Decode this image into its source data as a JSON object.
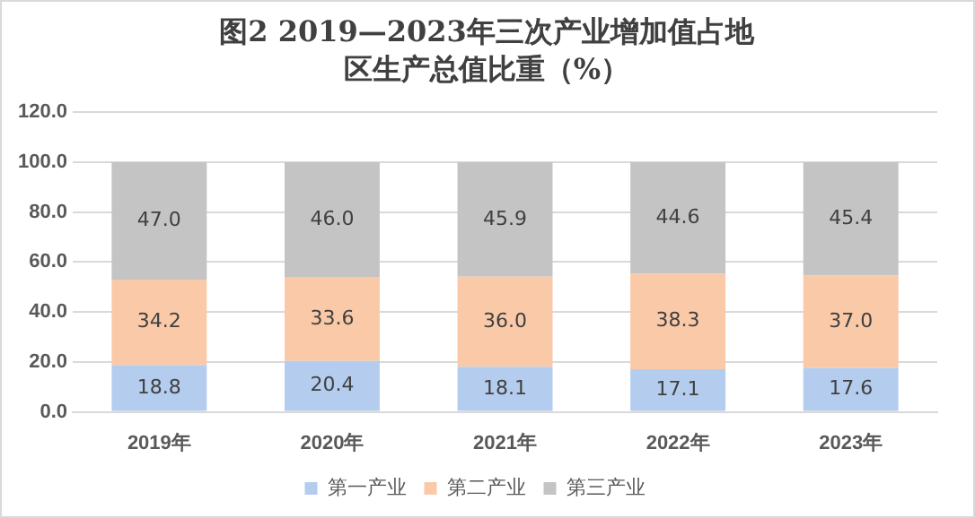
{
  "chart_data": {
    "type": "bar",
    "title": "图2 2019—2023年三次产业增加值占地区生产总值比重（%）",
    "categories": [
      "2019年",
      "2020年",
      "2021年",
      "2022年",
      "2023年"
    ],
    "stacked": true,
    "series": [
      {
        "name": "第一产业",
        "color": "#b4cdee",
        "values": [
          18.8,
          20.4,
          18.1,
          17.1,
          17.6
        ],
        "value_labels": [
          "18.8",
          "20.4",
          "18.1",
          "17.1",
          "17.6"
        ]
      },
      {
        "name": "第二产业",
        "color": "#f9c9a8",
        "values": [
          34.2,
          33.6,
          36.0,
          38.3,
          37.0
        ],
        "value_labels": [
          "34.2",
          "33.6",
          "36.0",
          "38.3",
          "37.0"
        ]
      },
      {
        "name": "第三产业",
        "color": "#c4c4c4",
        "values": [
          47.0,
          46.0,
          45.9,
          44.6,
          45.4
        ],
        "value_labels": [
          "47.0",
          "46.0",
          "45.9",
          "44.6",
          "45.4"
        ]
      }
    ],
    "ylim": [
      0,
      120
    ],
    "yticks": [
      {
        "value": 0,
        "label": "0.0"
      },
      {
        "value": 20,
        "label": "20.0"
      },
      {
        "value": 40,
        "label": "40.0"
      },
      {
        "value": 60,
        "label": "60.0"
      },
      {
        "value": 80,
        "label": "80.0"
      },
      {
        "value": 100,
        "label": "100.0"
      },
      {
        "value": 120,
        "label": "120.0"
      }
    ],
    "grid": "y",
    "legend": "bottom"
  }
}
